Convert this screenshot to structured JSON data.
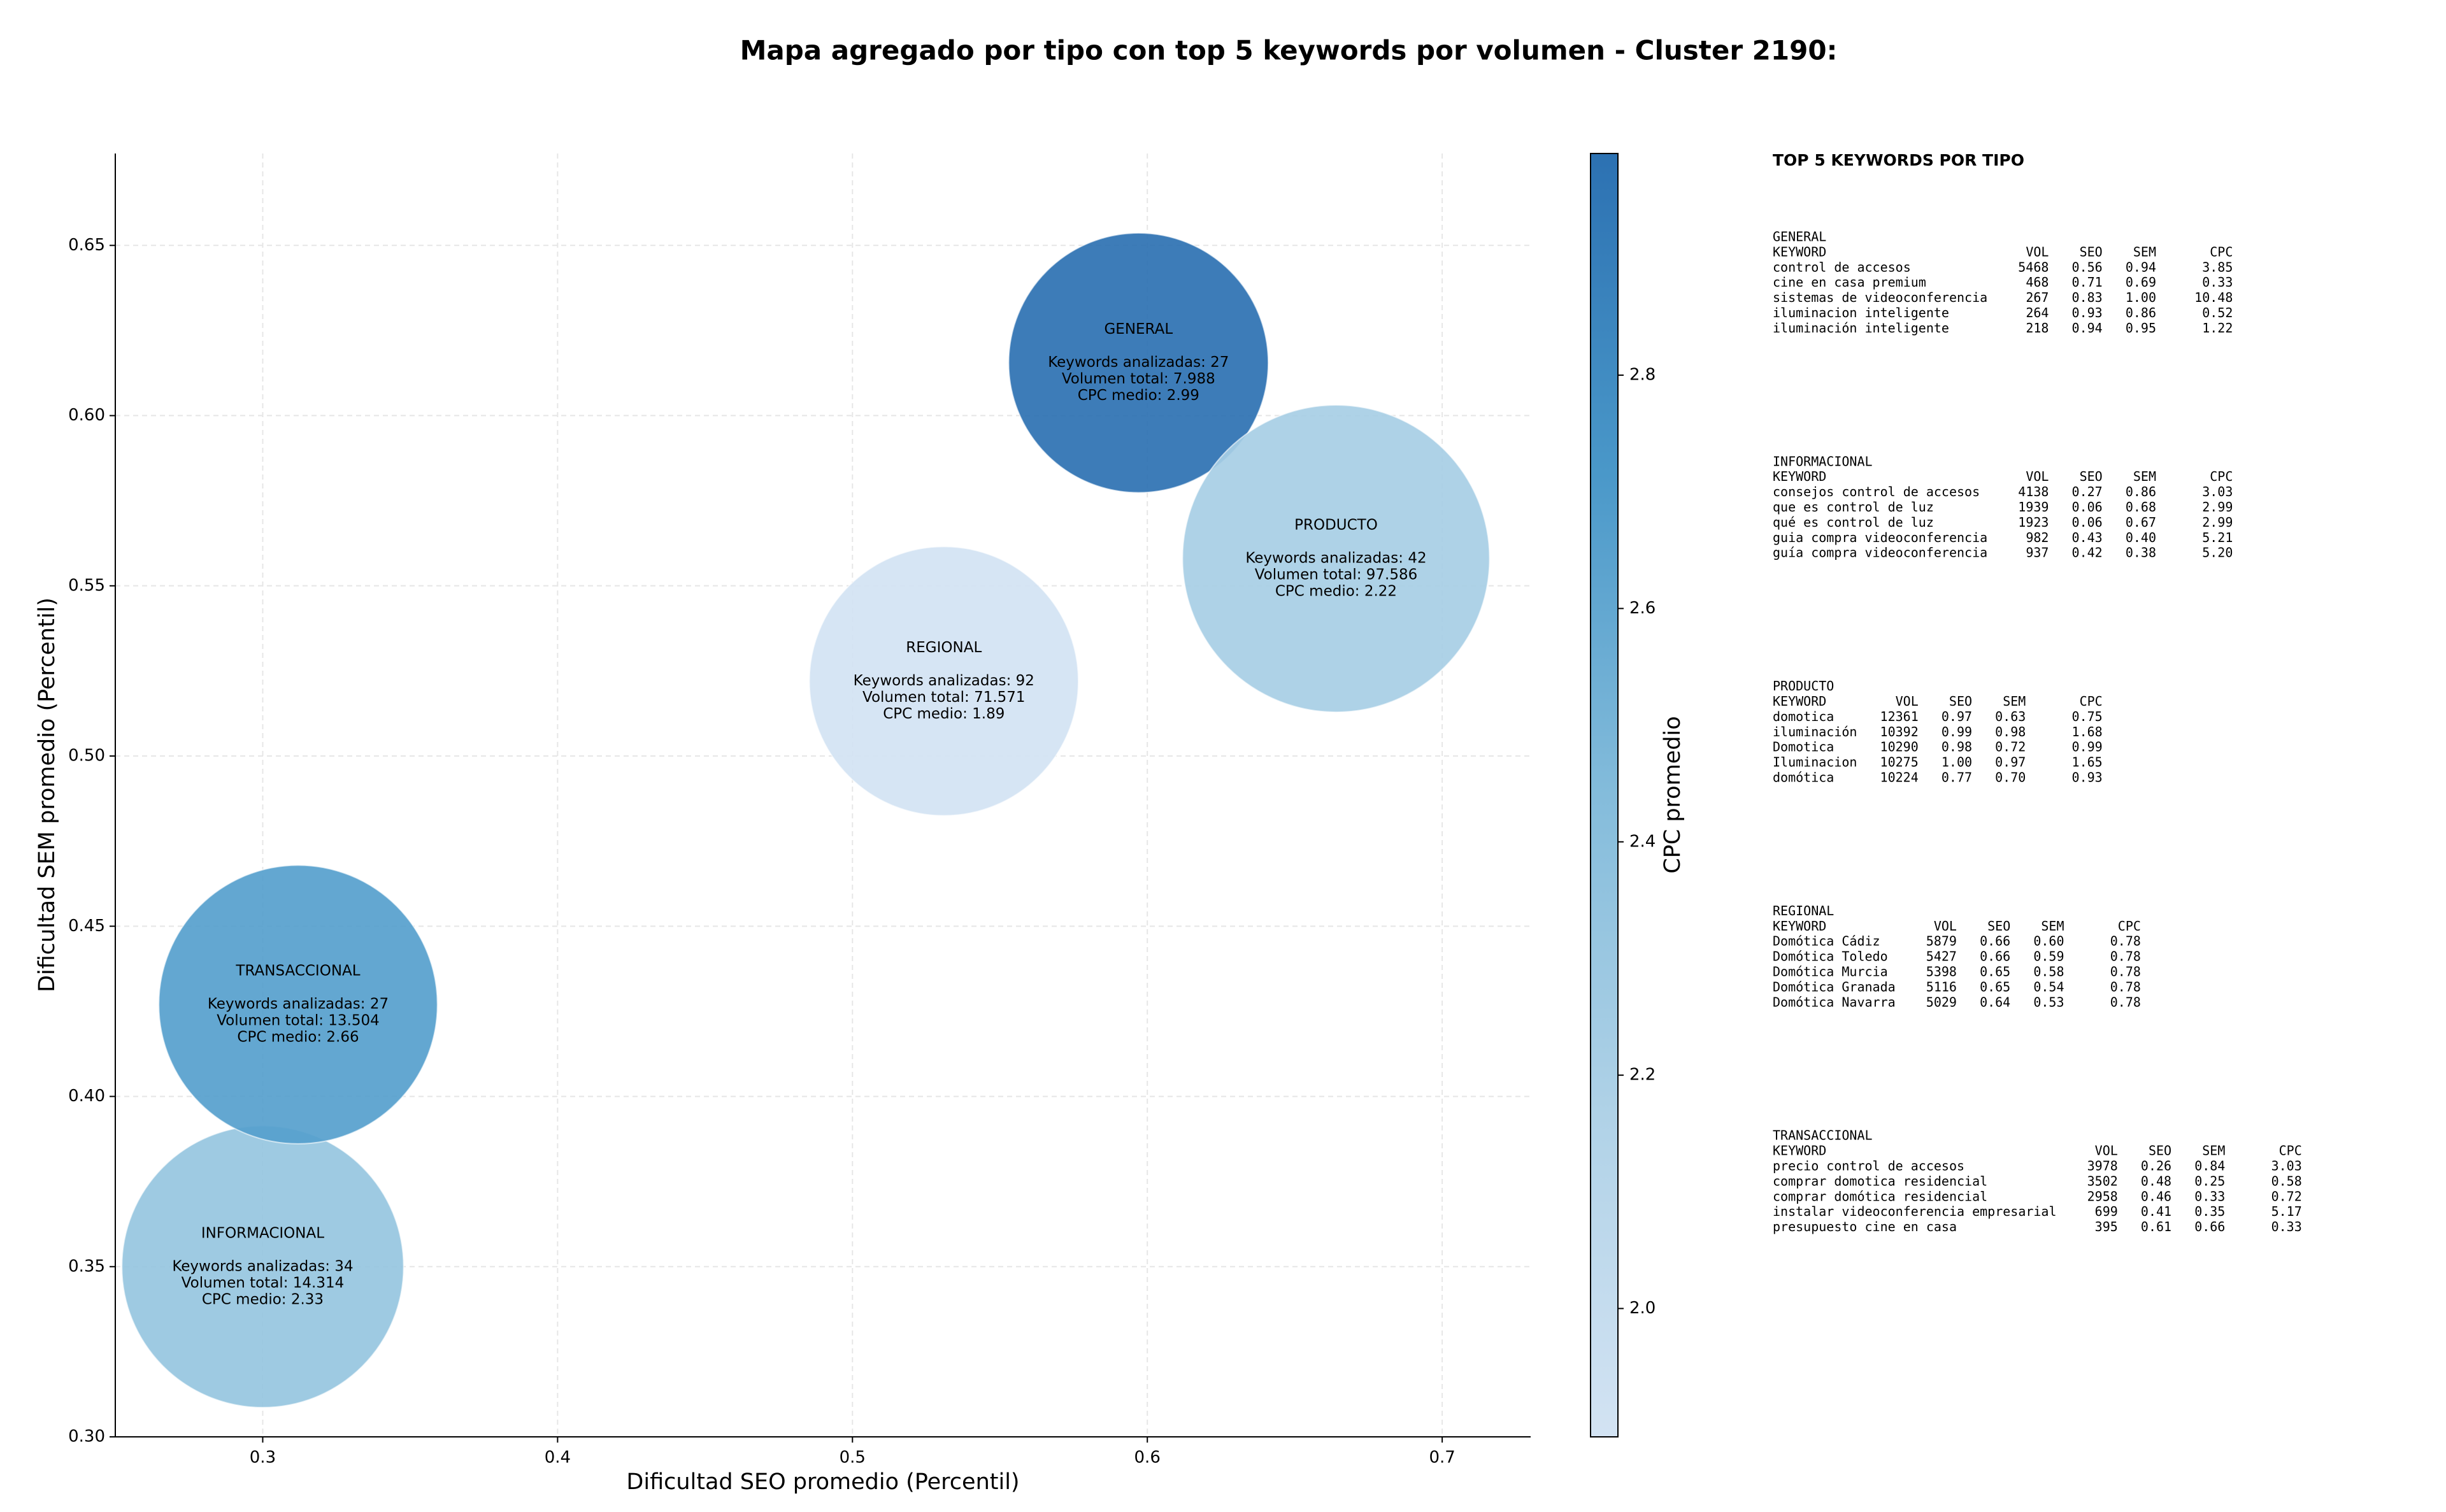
{
  "chart_data": {
    "type": "scatter",
    "title": "Mapa agregado por tipo con top 5 keywords por volumen - Cluster 2190:",
    "x_label": "Dificultad SEO promedio (Percentil)",
    "y_label": "Dificultad SEM promedio (Percentil)",
    "colorbar_label": "CPC promedio",
    "labels": [
      "GENERAL",
      "INFORMACIONAL",
      "PRODUCTO",
      "REGIONAL",
      "TRANSACCIONAL"
    ],
    "x": [
      0.597,
      0.3,
      0.664,
      0.531,
      0.312
    ],
    "values": [
      0.6155,
      0.35,
      0.558,
      0.522,
      0.427
    ],
    "sizes": [
      6724,
      7921,
      9409,
      7225,
      7744
    ],
    "cpc": [
      2.99,
      2.33,
      2.22,
      1.89,
      2.66
    ],
    "annotations": [
      [
        "Keywords analizadas: 27",
        "Volumen total: 7.988",
        "CPC medio: 2.99"
      ],
      [
        "Keywords analizadas: 34",
        "Volumen total: 14.314",
        "CPC medio: 2.33"
      ],
      [
        "Keywords analizadas: 42",
        "Volumen total: 97.586",
        "CPC medio: 2.22"
      ],
      [
        "Keywords analizadas: 92",
        "Volumen total: 71.571",
        "CPC medio: 1.89"
      ],
      [
        "Keywords analizadas: 27",
        "Volumen total: 13.504",
        "CPC medio: 2.66"
      ]
    ],
    "xlim": [
      0.25,
      0.73
    ],
    "ylim": [
      0.3,
      0.677
    ],
    "xticks": [
      0.3,
      0.4,
      0.5,
      0.6,
      0.7
    ],
    "yticks": [
      {
        "value": 0.3,
        "label": "0.30"
      },
      0.35,
      {
        "value": 0.4,
        "label": "0.40"
      },
      0.45,
      {
        "value": 0.5,
        "label": "0.50"
      },
      0.55,
      {
        "value": 0.6,
        "label": "0.60"
      },
      0.65
    ],
    "clim": [
      1.89,
      2.99
    ],
    "cticks": [
      {
        "value": 2,
        "label": "2.0"
      },
      2.2,
      2.4,
      2.6,
      2.8
    ],
    "colormap": [
      "#d3e3f3",
      "#b0d2e7",
      "#84bcdb",
      "#4a98c9",
      "#2c71b2"
    ],
    "grid": true
  },
  "table": {
    "title": "TOP 5 KEYWORDS POR TIPO",
    "header": [
      "KEYWORD",
      "VOL",
      "SEO",
      "SEM",
      "CPC"
    ],
    "groups": [
      {
        "name": "GENERAL",
        "rows": [
          [
            "control de accesos",
            "5468",
            "0.56",
            "0.94",
            "3.85"
          ],
          [
            "cine en casa premium",
            "468",
            "0.71",
            "0.69",
            "0.33"
          ],
          [
            "sistemas de videoconferencia",
            "267",
            "0.83",
            "1.00",
            "10.48"
          ],
          [
            "iluminacion inteligente",
            "264",
            "0.93",
            "0.86",
            "0.52"
          ],
          [
            "iluminación inteligente",
            "218",
            "0.94",
            "0.95",
            "1.22"
          ]
        ]
      },
      {
        "name": "INFORMACIONAL",
        "rows": [
          [
            "consejos control de accesos",
            "4138",
            "0.27",
            "0.86",
            "3.03"
          ],
          [
            "que es control de luz",
            "1939",
            "0.06",
            "0.68",
            "2.99"
          ],
          [
            "qué es control de luz",
            "1923",
            "0.06",
            "0.67",
            "2.99"
          ],
          [
            "guia compra videoconferencia",
            "982",
            "0.43",
            "0.40",
            "5.21"
          ],
          [
            "guía compra videoconferencia",
            "937",
            "0.42",
            "0.38",
            "5.20"
          ]
        ]
      },
      {
        "name": "PRODUCTO",
        "rows": [
          [
            "domotica",
            "12361",
            "0.97",
            "0.63",
            "0.75"
          ],
          [
            "iluminación",
            "10392",
            "0.99",
            "0.98",
            "1.68"
          ],
          [
            "Domotica",
            "10290",
            "0.98",
            "0.72",
            "0.99"
          ],
          [
            "Iluminacion",
            "10275",
            "1.00",
            "0.97",
            "1.65"
          ],
          [
            "domótica",
            "10224",
            "0.77",
            "0.70",
            "0.93"
          ]
        ]
      },
      {
        "name": "REGIONAL",
        "rows": [
          [
            "Domótica Cádiz",
            "5879",
            "0.66",
            "0.60",
            "0.78"
          ],
          [
            "Domótica Toledo",
            "5427",
            "0.66",
            "0.59",
            "0.78"
          ],
          [
            "Domótica Murcia",
            "5398",
            "0.65",
            "0.58",
            "0.78"
          ],
          [
            "Domótica Granada",
            "5116",
            "0.65",
            "0.54",
            "0.78"
          ],
          [
            "Domótica Navarra",
            "5029",
            "0.64",
            "0.53",
            "0.78"
          ]
        ]
      },
      {
        "name": "TRANSACCIONAL",
        "rows": [
          [
            "precio control de accesos",
            "3978",
            "0.26",
            "0.84",
            "3.03"
          ],
          [
            "comprar domotica residencial",
            "3502",
            "0.48",
            "0.25",
            "0.58"
          ],
          [
            "comprar domótica residencial",
            "2958",
            "0.46",
            "0.33",
            "0.72"
          ],
          [
            "instalar videoconferencia empresarial",
            "699",
            "0.41",
            "0.35",
            "5.17"
          ],
          [
            "presupuesto cine en casa",
            "395",
            "0.61",
            "0.66",
            "0.33"
          ]
        ]
      }
    ]
  }
}
